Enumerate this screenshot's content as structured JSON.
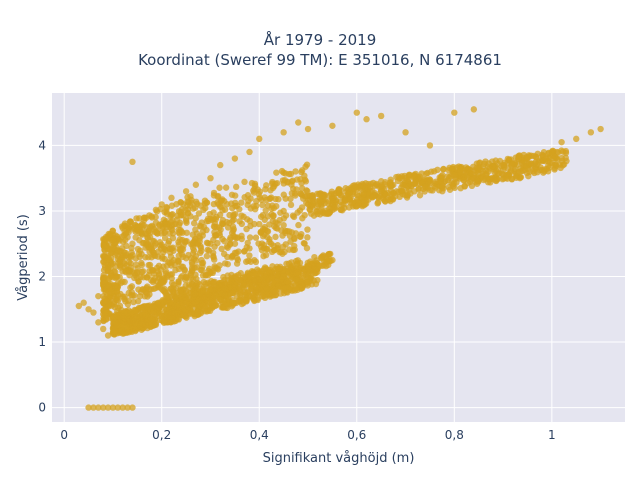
{
  "chart_data": {
    "type": "scatter",
    "title": "År 1979 - 2019",
    "subtitle": "Koordinat (Sweref 99 TM): E 351016, N 6174861",
    "xlabel": "Signifikant våghöjd (m)",
    "ylabel": "Vågperiod (s)",
    "xlim": [
      -0.025,
      1.15
    ],
    "ylim": [
      -0.22,
      4.8
    ],
    "x_ticks": [
      0,
      0.2,
      0.4,
      0.6,
      0.8,
      1
    ],
    "x_tick_labels": [
      "0",
      "0,2",
      "0,4",
      "0,6",
      "0,8",
      "1"
    ],
    "y_ticks": [
      0,
      1,
      2,
      3,
      4
    ],
    "y_tick_labels": [
      "0",
      "1",
      "2",
      "3",
      "4"
    ],
    "grid": true,
    "marker_color": "#d4a21f",
    "plot_bg": "#e5e5f0",
    "series": [
      {
        "values": [
          [
            0.05,
            0.0
          ],
          [
            0.06,
            0.0
          ],
          [
            0.07,
            0.0
          ],
          [
            0.08,
            0.0
          ],
          [
            0.09,
            0.0
          ],
          [
            0.1,
            0.0
          ],
          [
            0.11,
            0.0
          ],
          [
            0.12,
            0.0
          ],
          [
            0.13,
            0.0
          ],
          [
            0.14,
            0.0
          ],
          [
            0.03,
            1.55
          ],
          [
            0.04,
            1.6
          ],
          [
            0.05,
            1.5
          ],
          [
            0.06,
            1.45
          ],
          [
            0.07,
            1.7
          ],
          [
            0.08,
            1.9
          ],
          [
            0.07,
            1.3
          ],
          [
            0.08,
            1.2
          ],
          [
            0.09,
            1.1
          ],
          [
            0.1,
            1.15
          ],
          [
            0.09,
            2.1
          ],
          [
            0.1,
            2.2
          ],
          [
            0.11,
            2.4
          ],
          [
            0.12,
            2.3
          ],
          [
            0.13,
            2.6
          ],
          [
            0.14,
            2.5
          ],
          [
            0.15,
            2.7
          ],
          [
            0.16,
            2.8
          ],
          [
            0.17,
            2.75
          ],
          [
            0.18,
            2.9
          ],
          [
            0.12,
            1.25
          ],
          [
            0.14,
            1.2
          ],
          [
            0.16,
            1.3
          ],
          [
            0.18,
            1.35
          ],
          [
            0.2,
            1.4
          ],
          [
            0.22,
            1.45
          ],
          [
            0.25,
            1.5
          ],
          [
            0.28,
            1.55
          ],
          [
            0.3,
            1.6
          ],
          [
            0.32,
            1.65
          ],
          [
            0.14,
            3.75
          ],
          [
            0.2,
            3.1
          ],
          [
            0.22,
            3.2
          ],
          [
            0.25,
            3.3
          ],
          [
            0.27,
            3.4
          ],
          [
            0.3,
            3.5
          ],
          [
            0.32,
            3.7
          ],
          [
            0.35,
            3.8
          ],
          [
            0.38,
            3.9
          ],
          [
            0.4,
            4.1
          ],
          [
            0.45,
            4.2
          ],
          [
            0.48,
            4.35
          ],
          [
            0.5,
            4.25
          ],
          [
            0.55,
            4.3
          ],
          [
            0.6,
            4.5
          ],
          [
            0.62,
            4.4
          ],
          [
            0.65,
            4.45
          ],
          [
            0.7,
            4.2
          ],
          [
            0.75,
            4.0
          ],
          [
            0.8,
            4.5
          ],
          [
            0.84,
            4.55
          ],
          [
            0.3,
            2.5
          ],
          [
            0.35,
            2.6
          ],
          [
            0.4,
            2.8
          ],
          [
            0.45,
            3.0
          ],
          [
            0.5,
            3.1
          ],
          [
            0.55,
            3.2
          ],
          [
            0.6,
            3.25
          ],
          [
            0.65,
            3.3
          ],
          [
            0.7,
            3.4
          ],
          [
            0.75,
            3.45
          ],
          [
            0.8,
            3.55
          ],
          [
            0.85,
            3.65
          ],
          [
            0.9,
            3.7
          ],
          [
            0.95,
            3.8
          ],
          [
            1.0,
            3.9
          ],
          [
            1.02,
            4.05
          ],
          [
            1.05,
            4.1
          ],
          [
            1.08,
            4.2
          ],
          [
            1.1,
            4.25
          ],
          [
            0.3,
            1.8
          ],
          [
            0.35,
            1.85
          ],
          [
            0.4,
            1.95
          ],
          [
            0.45,
            2.0
          ],
          [
            0.5,
            2.15
          ],
          [
            0.55,
            2.25
          ],
          [
            0.2,
            1.9
          ],
          [
            0.25,
            2.0
          ],
          [
            0.28,
            2.1
          ],
          [
            0.33,
            2.2
          ]
        ]
      }
    ]
  }
}
